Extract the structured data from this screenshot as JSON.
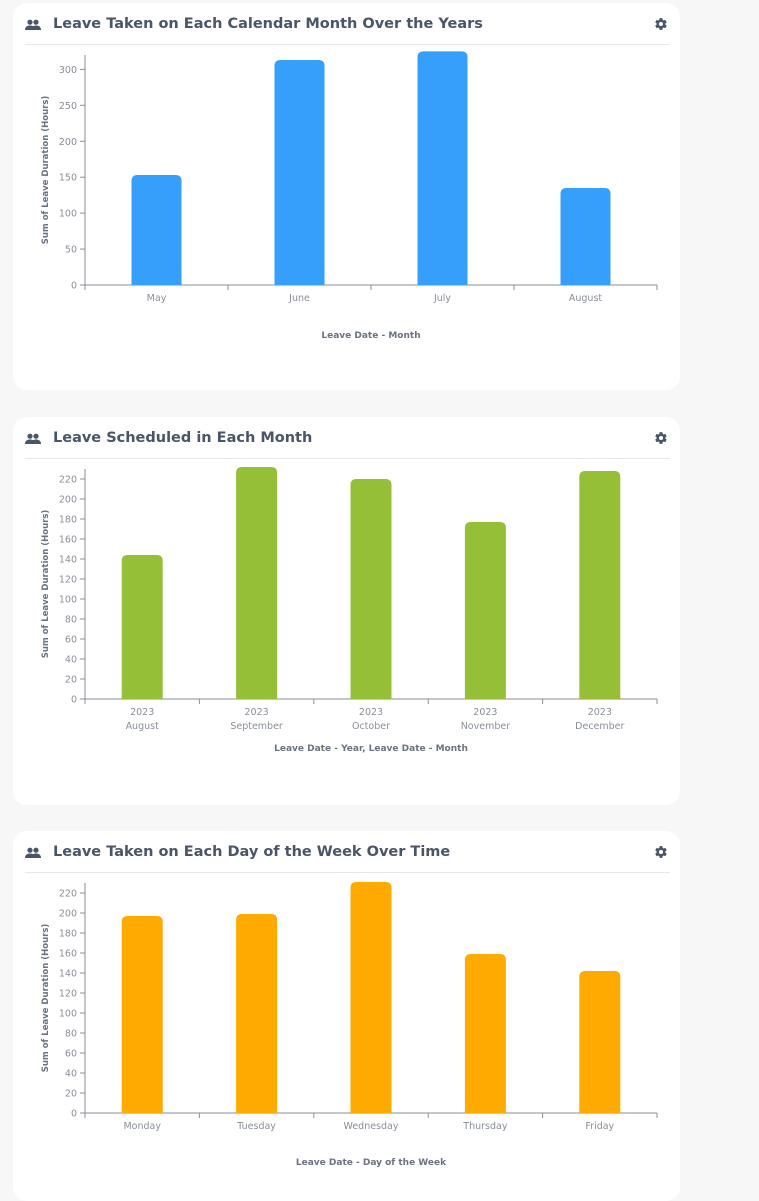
{
  "cards": [
    {
      "title": "Leave Taken on Each Calendar Month Over the Years",
      "people_icon": "people-icon",
      "settings_icon": "gear-icon"
    },
    {
      "title": "Leave Scheduled in Each Month",
      "people_icon": "people-icon",
      "settings_icon": "gear-icon"
    },
    {
      "title": "Leave Taken on Each Day of the Week Over Time",
      "people_icon": "people-icon",
      "settings_icon": "gear-icon"
    }
  ],
  "chart_data": [
    {
      "type": "bar",
      "title": "Leave Taken on Each Calendar Month Over the Years",
      "categories": [
        [
          "May"
        ],
        [
          "June"
        ],
        [
          "July"
        ],
        [
          "August"
        ]
      ],
      "values": [
        153,
        313,
        325,
        135
      ],
      "xlabel": "Leave Date - Month",
      "ylabel": "Sum of Leave Duration (Hours)",
      "ylim": [
        0,
        320
      ],
      "yticks": [
        0,
        50,
        100,
        150,
        200,
        250,
        300
      ],
      "color": "#369ffc",
      "grid": false
    },
    {
      "type": "bar",
      "title": "Leave Scheduled in Each Month",
      "categories": [
        [
          "2023",
          "August"
        ],
        [
          "2023",
          "September"
        ],
        [
          "2023",
          "October"
        ],
        [
          "2023",
          "November"
        ],
        [
          "2023",
          "December"
        ]
      ],
      "values": [
        144,
        232,
        220,
        177,
        228
      ],
      "xlabel": "Leave Date - Year, Leave Date - Month",
      "ylabel": "Sum of Leave Duration (Hours)",
      "ylim": [
        0,
        230
      ],
      "yticks": [
        0,
        20,
        40,
        60,
        80,
        100,
        120,
        140,
        160,
        180,
        200,
        220
      ],
      "color": "#96bf38",
      "grid": false
    },
    {
      "type": "bar",
      "title": "Leave Taken on Each Day of the Week Over Time",
      "categories": [
        [
          "Monday"
        ],
        [
          "Tuesday"
        ],
        [
          "Wednesday"
        ],
        [
          "Thursday"
        ],
        [
          "Friday"
        ]
      ],
      "values": [
        197,
        199,
        231,
        159,
        142
      ],
      "xlabel": "Leave Date - Day of the Week",
      "ylabel": "Sum of Leave Duration (Hours)",
      "ylim": [
        0,
        230
      ],
      "yticks": [
        0,
        20,
        40,
        60,
        80,
        100,
        120,
        140,
        160,
        180,
        200,
        220
      ],
      "color": "#ffaa00",
      "grid": false
    }
  ]
}
